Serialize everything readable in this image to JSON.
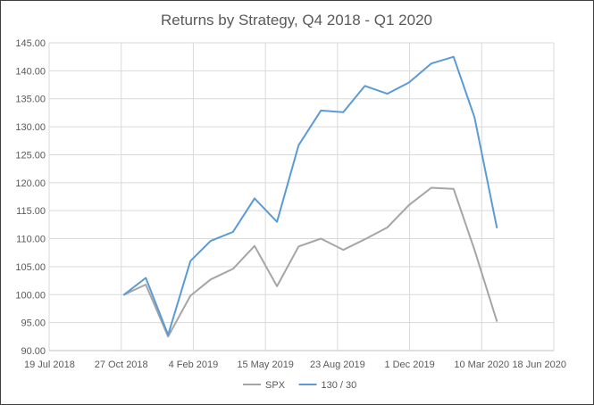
{
  "chart_data": {
    "type": "line",
    "title": "Returns by Strategy, Q4 2018  - Q1 2020",
    "xlabel": "",
    "ylabel": "",
    "ylim": [
      90,
      145
    ],
    "y_ticks": [
      "90.00",
      "95.00",
      "100.00",
      "105.00",
      "110.00",
      "115.00",
      "120.00",
      "125.00",
      "130.00",
      "135.00",
      "140.00",
      "145.00"
    ],
    "x_ticks": [
      "19 Jul 2018",
      "27 Oct 2018",
      "4 Feb 2019",
      "15 May 2019",
      "23 Aug 2019",
      "1 Dec 2019",
      "10 Mar 2020",
      "18 Jun 2020"
    ],
    "x": [
      "2018-10-31",
      "2018-11-30",
      "2018-12-31",
      "2019-01-31",
      "2019-02-28",
      "2019-03-31",
      "2019-04-30",
      "2019-05-31",
      "2019-06-30",
      "2019-07-31",
      "2019-08-31",
      "2019-09-30",
      "2019-10-31",
      "2019-11-30",
      "2019-12-31",
      "2020-01-31",
      "2020-02-29",
      "2020-03-31"
    ],
    "series": [
      {
        "name": "SPX",
        "color": "#a5a5a5",
        "values": [
          100.0,
          101.8,
          92.5,
          99.8,
          102.7,
          104.6,
          108.7,
          101.5,
          108.6,
          110.0,
          108.0,
          109.9,
          112.0,
          116.0,
          119.1,
          118.9,
          108.0,
          95.3
        ]
      },
      {
        "name": "130 / 30",
        "color": "#5b9bd5",
        "values": [
          100.0,
          103.0,
          92.8,
          106.0,
          109.6,
          111.2,
          117.2,
          113.0,
          126.7,
          132.9,
          132.6,
          137.3,
          135.9,
          137.9,
          141.3,
          142.5,
          131.7,
          112.0
        ]
      }
    ],
    "grid": true,
    "legend_position": "bottom"
  }
}
